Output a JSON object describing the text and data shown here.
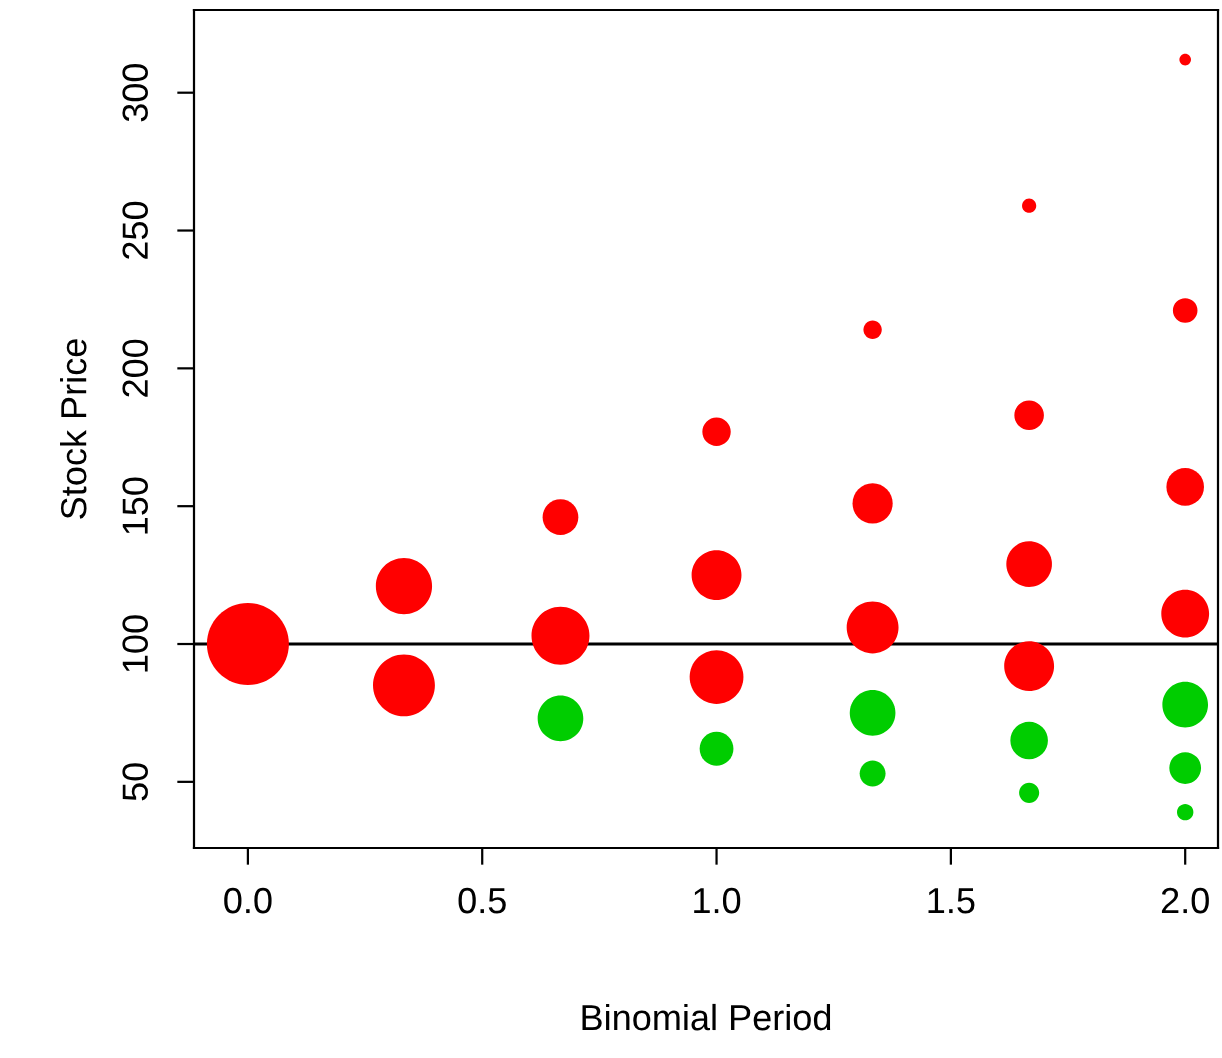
{
  "chart_data": {
    "type": "bubble",
    "xlabel": "Binomial Period",
    "ylabel": "Stock Price",
    "x": [
      0,
      0.333,
      0.333,
      0.667,
      0.667,
      0.667,
      1,
      1,
      1,
      1,
      1.333,
      1.333,
      1.333,
      1.333,
      1.333,
      1.667,
      1.667,
      1.667,
      1.667,
      1.667,
      1.667,
      2,
      2,
      2,
      2,
      2,
      2,
      2
    ],
    "values": [
      100,
      121,
      85,
      146,
      103,
      73,
      177,
      125,
      88,
      62,
      214,
      151,
      106,
      75,
      53,
      259,
      183,
      129,
      92,
      65,
      46,
      312,
      221,
      157,
      111,
      78,
      55,
      39
    ],
    "sizes": [
      1,
      0.47,
      0.57,
      0.19,
      0.5,
      0.31,
      0.12,
      0.37,
      0.43,
      0.17,
      0.05,
      0.24,
      0.4,
      0.31,
      0.1,
      0.03,
      0.13,
      0.31,
      0.37,
      0.21,
      0.06,
      0.02,
      0.09,
      0.21,
      0.34,
      0.31,
      0.15,
      0.04
    ],
    "colors": [
      "#ff0000",
      "#ff0000",
      "#ff0000",
      "#ff0000",
      "#ff0000",
      "#00cd00",
      "#ff0000",
      "#ff0000",
      "#ff0000",
      "#00cd00",
      "#ff0000",
      "#ff0000",
      "#ff0000",
      "#00cd00",
      "#00cd00",
      "#ff0000",
      "#ff0000",
      "#ff0000",
      "#ff0000",
      "#00cd00",
      "#00cd00",
      "#ff0000",
      "#ff0000",
      "#ff0000",
      "#ff0000",
      "#00cd00",
      "#00cd00",
      "#00cd00"
    ],
    "xlim": [
      -0.115,
      2.07
    ],
    "xticks": [
      {
        "value": 0,
        "label": "0.0"
      },
      0.5,
      {
        "value": 1,
        "label": "1.0"
      },
      1.5,
      {
        "value": 2,
        "label": "2.0"
      }
    ],
    "ylim": [
      26,
      330
    ],
    "yticks": [
      50,
      100,
      150,
      200,
      250,
      300
    ],
    "ref_lines": [
      {
        "axis": "y",
        "value": 100,
        "color": "#000000"
      }
    ],
    "grid": false,
    "legend": false
  }
}
